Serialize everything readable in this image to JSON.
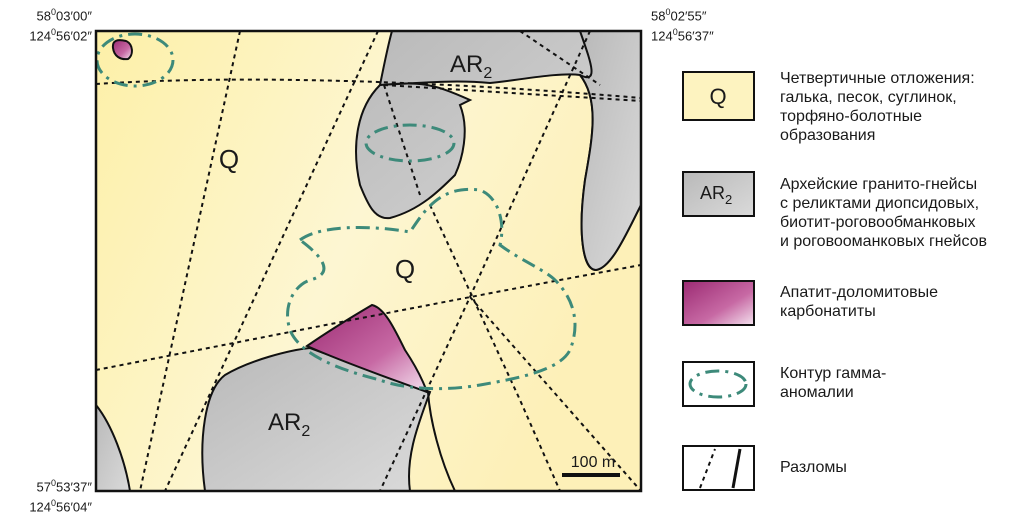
{
  "coords": {
    "top_left": {
      "lat": "58°03′00″",
      "lon": "124°56′02″",
      "lat_deg": "58",
      "lat_rest": "03′00″",
      "lon_deg": "124",
      "lon_rest": "56′02″"
    },
    "top_right": {
      "lat_deg": "58",
      "lat_rest": "02′55″",
      "lon_deg": "124",
      "lon_rest": "56′37″"
    },
    "bottom_left": {
      "lat_deg": "57",
      "lat_rest": "53′37″",
      "lon_deg": "124",
      "lon_rest": "56′04″"
    }
  },
  "map_labels": {
    "q_upper": "Q",
    "q_center": "Q",
    "ar2_top_main": "AR",
    "ar2_top_sub": "2",
    "ar2_bottom_main": "AR",
    "ar2_bottom_sub": "2"
  },
  "scale_bar": {
    "label": "100 m"
  },
  "legend": {
    "quaternary": {
      "symbol": "Q",
      "lines": [
        "Четвертичные отложения:",
        "галька, песок, суглинок,",
        "торфяно-болотные",
        "образования"
      ],
      "color": "#fdf3c0"
    },
    "archean": {
      "symbol_main": "AR",
      "symbol_sub": "2",
      "lines": [
        "Архейские гранито-гнейсы",
        "с реликтами диопсидовых,",
        "биотит-роговообманковых",
        "и роговооманковых гнейсов"
      ],
      "color": "#c8c8c8"
    },
    "carbonatite": {
      "lines": [
        "Апатит-доломитовые",
        "карбонатиты"
      ],
      "color": "#a8347c"
    },
    "gamma": {
      "lines": [
        "Контур гамма-",
        "аномалии"
      ],
      "color": "#3d8a7a"
    },
    "faults": {
      "lines": [
        "Разломы"
      ]
    }
  }
}
